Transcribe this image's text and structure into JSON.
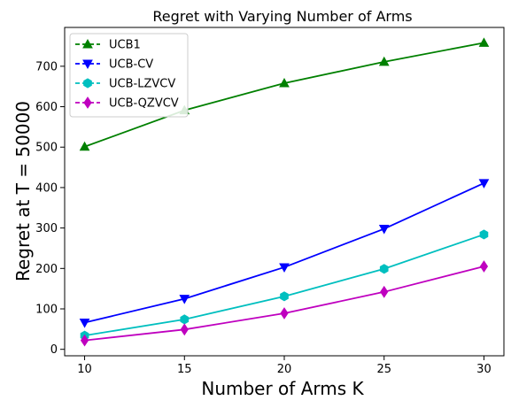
{
  "chart_data": {
    "type": "line",
    "title": "Regret with Varying Number of Arms",
    "xlabel": "Number of Arms K",
    "ylabel": "Regret at T = 50000",
    "x": [
      10,
      15,
      20,
      25,
      30
    ],
    "xticks": [
      "10",
      "15",
      "20",
      "25",
      "30"
    ],
    "yticks": [
      "0",
      "100",
      "200",
      "300",
      "400",
      "500",
      "600",
      "700"
    ],
    "xlim": [
      9.0,
      31.0
    ],
    "ylim": [
      -16,
      796
    ],
    "grid": false,
    "legend_position": "top-left",
    "series": [
      {
        "name": "UCB1",
        "color": "#008000",
        "marker": "triangle-up",
        "values": [
          501,
          591,
          658,
          711,
          758
        ]
      },
      {
        "name": "UCB-CV",
        "color": "#0000ff",
        "marker": "triangle-down",
        "values": [
          66,
          125,
          203,
          298,
          411
        ]
      },
      {
        "name": "UCB-LZVCV",
        "color": "#00bfbf",
        "marker": "hexagon",
        "values": [
          34,
          74,
          131,
          199,
          284
        ]
      },
      {
        "name": "UCB-QZVCV",
        "color": "#bf00bf",
        "marker": "diamond",
        "values": [
          22,
          49,
          89,
          142,
          205
        ]
      }
    ]
  }
}
